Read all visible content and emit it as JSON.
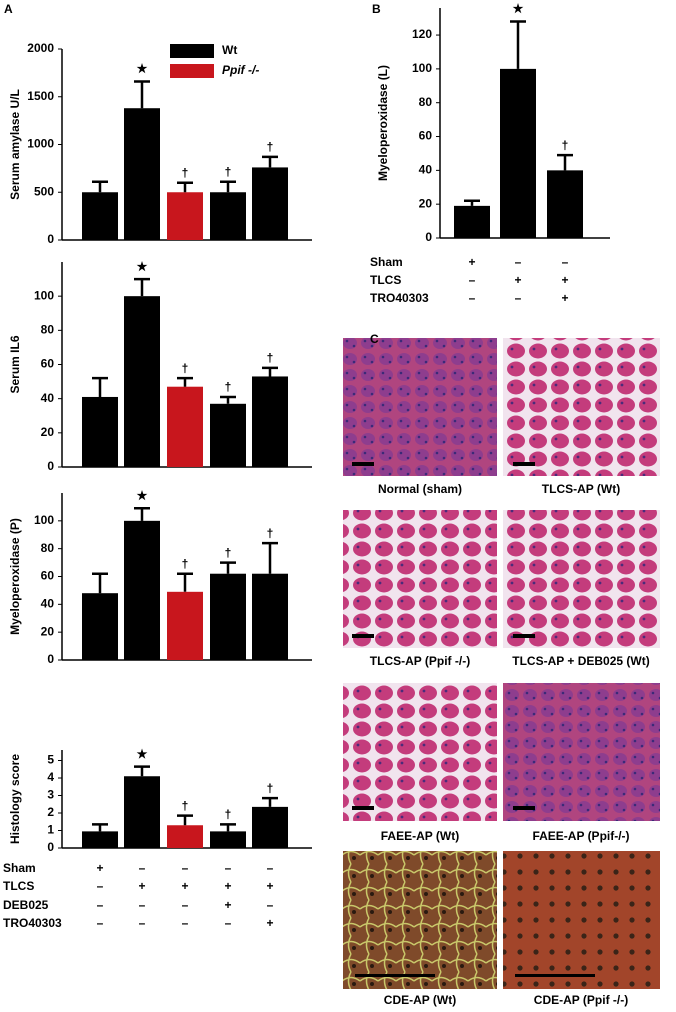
{
  "chart_data": [
    {
      "type": "bar",
      "panel": "A",
      "ylabel": "Serum amylase U/L",
      "ylim": [
        0,
        2000
      ],
      "yticks": [
        0,
        500,
        1000,
        1500,
        2000
      ],
      "values": [
        500,
        1380,
        500,
        500,
        760
      ],
      "errors": [
        110,
        280,
        100,
        110,
        110
      ],
      "colors": [
        "#000000",
        "#000000",
        "#c8161d",
        "#000000",
        "#000000"
      ],
      "annotations": [
        null,
        "★",
        "†",
        "†",
        "†"
      ],
      "legend": [
        {
          "name": "Wt",
          "color": "#000000"
        },
        {
          "name": "Ppif -/-",
          "color": "#c8161d"
        }
      ]
    },
    {
      "type": "bar",
      "ylabel": "Serum IL6",
      "ylim": [
        0,
        120
      ],
      "yticks": [
        0,
        20,
        40,
        60,
        80,
        100
      ],
      "values": [
        41,
        100,
        47,
        37,
        53
      ],
      "errors": [
        11,
        10,
        5,
        4,
        5
      ],
      "colors": [
        "#000000",
        "#000000",
        "#c8161d",
        "#000000",
        "#000000"
      ],
      "annotations": [
        null,
        "★",
        "†",
        "†",
        "†"
      ]
    },
    {
      "type": "bar",
      "ylabel": "Myeloperoxidase (P)",
      "ylim": [
        0,
        120
      ],
      "yticks": [
        0,
        20,
        40,
        60,
        80,
        100
      ],
      "values": [
        48,
        100,
        49,
        62,
        62
      ],
      "errors": [
        14,
        9,
        13,
        8,
        22
      ],
      "colors": [
        "#000000",
        "#000000",
        "#c8161d",
        "#000000",
        "#000000"
      ],
      "annotations": [
        null,
        "★",
        "†",
        "†",
        "†"
      ]
    },
    {
      "type": "bar",
      "ylabel": "Histology score",
      "ylim": [
        0,
        5.6
      ],
      "yticks": [
        0,
        1,
        2,
        3,
        4,
        5
      ],
      "values": [
        0.95,
        4.1,
        1.3,
        0.95,
        2.35
      ],
      "errors": [
        0.4,
        0.55,
        0.55,
        0.4,
        0.5
      ],
      "colors": [
        "#000000",
        "#000000",
        "#c8161d",
        "#000000",
        "#000000"
      ],
      "annotations": [
        null,
        "★",
        "†",
        "†",
        "†"
      ],
      "conditions": [
        {
          "label": "Sham",
          "marks": [
            "+",
            "–",
            "–",
            "–",
            "–"
          ]
        },
        {
          "label": "TLCS",
          "marks": [
            "–",
            "+",
            "+",
            "+",
            "+"
          ]
        },
        {
          "label": "DEB025",
          "marks": [
            "–",
            "–",
            "–",
            "+",
            "–"
          ]
        },
        {
          "label": "TRO40303",
          "marks": [
            "–",
            "–",
            "–",
            "–",
            "+"
          ]
        }
      ]
    },
    {
      "type": "bar",
      "panel": "B",
      "ylabel": "Myeloperoxidase (L)",
      "ylim": [
        0,
        136
      ],
      "yticks": [
        0,
        20,
        40,
        60,
        80,
        100,
        120
      ],
      "values": [
        19,
        100,
        40
      ],
      "errors": [
        3,
        28,
        9
      ],
      "colors": [
        "#000000",
        "#000000",
        "#000000"
      ],
      "annotations": [
        null,
        "★",
        "†"
      ],
      "conditions": [
        {
          "label": "Sham",
          "marks": [
            "+",
            "–",
            "–"
          ]
        },
        {
          "label": "TLCS",
          "marks": [
            "–",
            "+",
            "+"
          ]
        },
        {
          "label": "TRO40303",
          "marks": [
            "–",
            "–",
            "+"
          ]
        }
      ]
    }
  ],
  "histology": {
    "panel": "C",
    "captions": [
      "Normal (sham)",
      "TLCS-AP (Wt)",
      "TLCS-AP (Ppif -/-)",
      "TLCS-AP + DEB025 (Wt)",
      "FAEE-AP (Wt)",
      "FAEE-AP (Ppif-/-)",
      "CDE-AP  (Wt)",
      "CDE-AP (Ppif -/-)"
    ]
  }
}
